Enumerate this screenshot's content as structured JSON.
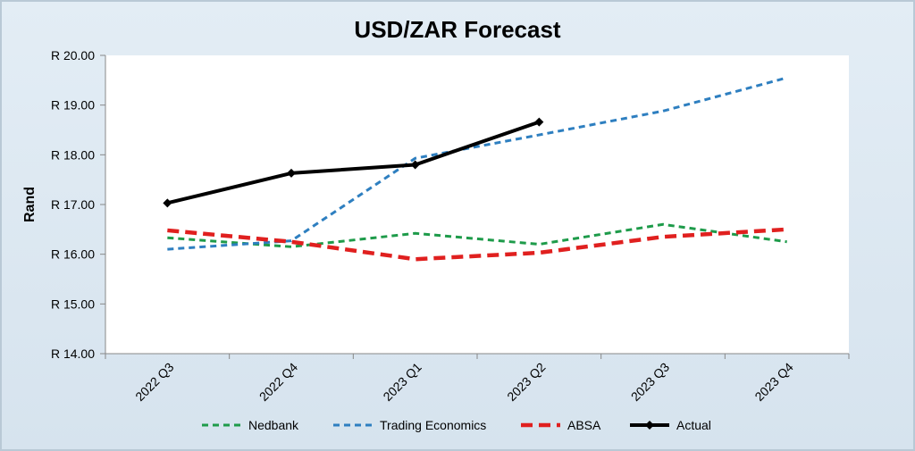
{
  "chart_data": {
    "type": "line",
    "title": "USD/ZAR Forecast",
    "xlabel": "",
    "ylabel": "Rand",
    "categories": [
      "2022 Q3",
      "2022 Q4",
      "2023 Q1",
      "2023 Q2",
      "2023 Q3",
      "2023 Q4"
    ],
    "ylim": [
      14,
      20
    ],
    "yticks": [
      14,
      15,
      16,
      17,
      18,
      19,
      20
    ],
    "ytick_labels": [
      "R 14.00",
      "R 15.00",
      "R 16.00",
      "R 17.00",
      "R 18.00",
      "R 19.00",
      "R 20.00"
    ],
    "grid": false,
    "legend_position": "bottom",
    "series": [
      {
        "name": "Nedbank",
        "color": "#1e9b4a",
        "style": "dashed",
        "values": [
          16.33,
          16.15,
          16.42,
          16.2,
          16.6,
          16.25
        ]
      },
      {
        "name": "Trading Economics",
        "color": "#2e7fc0",
        "style": "dashed",
        "values": [
          16.1,
          16.27,
          17.93,
          18.4,
          18.88,
          19.55
        ]
      },
      {
        "name": "ABSA",
        "color": "#e0201f",
        "style": "thick-dashed",
        "values": [
          16.48,
          16.25,
          15.9,
          16.03,
          16.35,
          16.5
        ]
      },
      {
        "name": "Actual",
        "color": "#000000",
        "style": "solid-diamond",
        "values": [
          17.03,
          17.63,
          17.8,
          18.66,
          null,
          null
        ]
      }
    ]
  }
}
